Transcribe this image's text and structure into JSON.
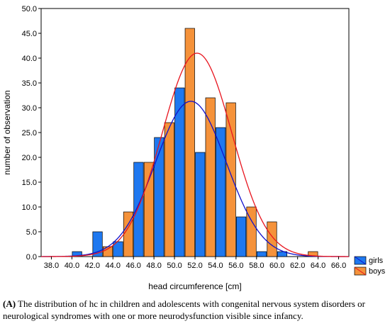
{
  "chart_data": {
    "type": "bar",
    "xlabel": "head circumference [cm]",
    "ylabel": "number of observation",
    "x_ticks": [
      "38.0",
      "40.0",
      "42.0",
      "44.0",
      "46.0",
      "48.0",
      "50.0",
      "52.0",
      "54.0",
      "56.0",
      "58.0",
      "60.0",
      "62.0",
      "64.0",
      "66.0"
    ],
    "x_range": [
      37.0,
      67.0
    ],
    "y_ticks": [
      "0.0",
      "5.0",
      "10.0",
      "15.0",
      "20.0",
      "25.0",
      "30.0",
      "35.0",
      "40.0",
      "45.0",
      "50.0"
    ],
    "ylim": [
      0,
      50
    ],
    "bin_width": 2,
    "bins": [
      41,
      43,
      45,
      47,
      49,
      51,
      53,
      55,
      57,
      59,
      61,
      63
    ],
    "grid": false,
    "legend_position": "bottom-right",
    "series": [
      {
        "name": "girls",
        "color": "#1E78F0",
        "values": [
          1,
          5,
          3,
          19,
          24,
          34,
          21,
          26,
          8,
          1,
          1,
          0
        ],
        "normal_fit": {
          "mean": 51.6,
          "peak": 31.3,
          "sd": 3.45,
          "color": "#1010CC"
        }
      },
      {
        "name": "boys",
        "color": "#F5923A",
        "values": [
          0,
          2,
          9,
          19,
          27,
          46,
          32,
          31,
          10,
          7,
          0,
          1
        ],
        "normal_fit": {
          "mean": 52.2,
          "peak": 41.0,
          "sd": 3.4,
          "color": "#E8141E"
        }
      }
    ]
  },
  "caption": {
    "label": "(A)",
    "text": " The distribution of hc in children and adolescents with congenital nervous system disorders or neurological syndromes with one or more neurodysfunction visible since infancy."
  }
}
